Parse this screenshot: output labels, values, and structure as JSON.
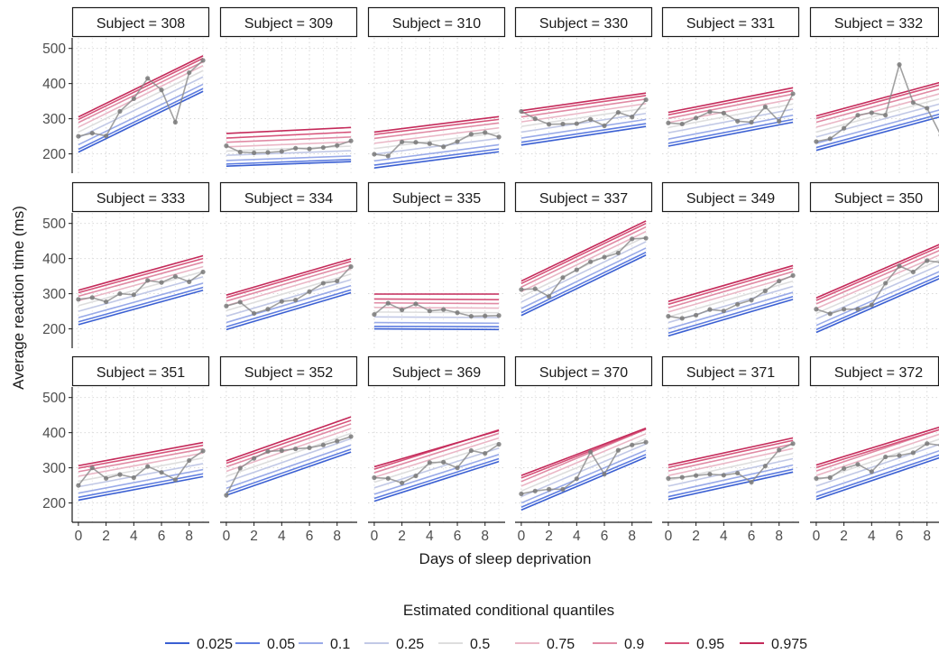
{
  "chart_data": {
    "type": "line",
    "xlabel": "Days of sleep deprivation",
    "ylabel": "Average reaction time (ms)",
    "facet_prefix": "Subject = ",
    "x_ticks": [
      0,
      2,
      4,
      6,
      8
    ],
    "y_ticks": [
      200,
      300,
      400,
      500
    ],
    "xlim": [
      -0.45,
      9.45
    ],
    "ylim": [
      145,
      530
    ],
    "grid": true,
    "legend_title": "Estimated conditional quantiles",
    "legend_position": "bottom",
    "quantiles": [
      {
        "q": "0.025",
        "color": "#3a5fd2"
      },
      {
        "q": "0.05",
        "color": "#5d7ce0"
      },
      {
        "q": "0.1",
        "color": "#99aae8"
      },
      {
        "q": "0.25",
        "color": "#c2c9e6"
      },
      {
        "q": "0.5",
        "color": "#dedede"
      },
      {
        "q": "0.75",
        "color": "#eab7c6"
      },
      {
        "q": "0.9",
        "color": "#e08aa4"
      },
      {
        "q": "0.95",
        "color": "#d6537a"
      },
      {
        "q": "0.975",
        "color": "#c42a5a"
      }
    ],
    "observed_color": "#8a8a8a",
    "subjects": [
      {
        "id": "308",
        "lines": [
          [
            205,
            378
          ],
          [
            213,
            386
          ],
          [
            226,
            398
          ],
          [
            246,
            419
          ],
          [
            262,
            437
          ],
          [
            276,
            451
          ],
          [
            289,
            462
          ],
          [
            298,
            472
          ],
          [
            305,
            479
          ]
        ],
        "observed": [
          250,
          259,
          251,
          321,
          357,
          415,
          382,
          290,
          431,
          466
        ]
      },
      {
        "id": "309",
        "lines": [
          [
            165,
            178
          ],
          [
            171,
            184
          ],
          [
            181,
            194
          ],
          [
            196,
            209
          ],
          [
            208,
            222
          ],
          [
            220,
            234
          ],
          [
            233,
            248
          ],
          [
            245,
            262
          ],
          [
            258,
            275
          ]
        ],
        "observed": [
          223,
          205,
          203,
          204,
          207,
          216,
          214,
          218,
          224,
          237
        ]
      },
      {
        "id": "310",
        "lines": [
          [
            160,
            206
          ],
          [
            168,
            214
          ],
          [
            180,
            226
          ],
          [
            199,
            244
          ],
          [
            215,
            260
          ],
          [
            230,
            274
          ],
          [
            244,
            288
          ],
          [
            255,
            298
          ],
          [
            262,
            306
          ]
        ],
        "observed": [
          199,
          194,
          234,
          233,
          229,
          220,
          235,
          256,
          261,
          248
        ]
      },
      {
        "id": "330",
        "lines": [
          [
            225,
            278
          ],
          [
            233,
            286
          ],
          [
            245,
            298
          ],
          [
            262,
            315
          ],
          [
            278,
            330
          ],
          [
            291,
            343
          ],
          [
            305,
            356
          ],
          [
            316,
            366
          ],
          [
            323,
            373
          ]
        ],
        "observed": [
          321,
          300,
          284,
          285,
          286,
          298,
          280,
          318,
          305,
          354
        ]
      },
      {
        "id": "331",
        "lines": [
          [
            222,
            290
          ],
          [
            230,
            298
          ],
          [
            242,
            310
          ],
          [
            260,
            327
          ],
          [
            275,
            342
          ],
          [
            289,
            356
          ],
          [
            301,
            370
          ],
          [
            311,
            380
          ],
          [
            318,
            388
          ]
        ],
        "observed": [
          288,
          285,
          302,
          320,
          316,
          293,
          290,
          334,
          293,
          371
        ]
      },
      {
        "id": "332",
        "lines": [
          [
            210,
            306
          ],
          [
            218,
            314
          ],
          [
            230,
            326
          ],
          [
            248,
            343
          ],
          [
            262,
            358
          ],
          [
            276,
            372
          ],
          [
            290,
            386
          ],
          [
            301,
            397
          ],
          [
            308,
            404
          ]
        ],
        "observed": [
          235,
          243,
          273,
          310,
          317,
          310,
          454,
          346,
          330,
          253
        ]
      },
      {
        "id": "333",
        "lines": [
          [
            212,
            310
          ],
          [
            220,
            318
          ],
          [
            232,
            330
          ],
          [
            250,
            348
          ],
          [
            266,
            363
          ],
          [
            280,
            377
          ],
          [
            293,
            390
          ],
          [
            303,
            400
          ],
          [
            310,
            408
          ]
        ],
        "observed": [
          284,
          289,
          277,
          300,
          297,
          338,
          332,
          349,
          334,
          362
        ]
      },
      {
        "id": "334",
        "lines": [
          [
            198,
            303
          ],
          [
            206,
            311
          ],
          [
            218,
            323
          ],
          [
            236,
            340
          ],
          [
            252,
            356
          ],
          [
            266,
            370
          ],
          [
            279,
            382
          ],
          [
            289,
            392
          ],
          [
            296,
            399
          ]
        ],
        "observed": [
          265,
          276,
          244,
          256,
          278,
          282,
          306,
          330,
          336,
          377
        ]
      },
      {
        "id": "335",
        "lines": [
          [
            200,
            198
          ],
          [
            207,
            206
          ],
          [
            218,
            216
          ],
          [
            234,
            232
          ],
          [
            248,
            246
          ],
          [
            261,
            259
          ],
          [
            274,
            272
          ],
          [
            285,
            283
          ],
          [
            299,
            299
          ]
        ],
        "observed": [
          241,
          273,
          254,
          271,
          251,
          255,
          246,
          236,
          237,
          238
        ]
      },
      {
        "id": "337",
        "lines": [
          [
            238,
            410
          ],
          [
            246,
            418
          ],
          [
            258,
            430
          ],
          [
            276,
            448
          ],
          [
            292,
            463
          ],
          [
            306,
            477
          ],
          [
            319,
            490
          ],
          [
            329,
            500
          ],
          [
            336,
            507
          ]
        ],
        "observed": [
          312,
          314,
          292,
          346,
          368,
          391,
          404,
          416,
          456,
          458
        ]
      },
      {
        "id": "349",
        "lines": [
          [
            180,
            284
          ],
          [
            188,
            292
          ],
          [
            200,
            304
          ],
          [
            218,
            321
          ],
          [
            234,
            336
          ],
          [
            248,
            350
          ],
          [
            260,
            363
          ],
          [
            270,
            373
          ],
          [
            278,
            380
          ]
        ],
        "observed": [
          236,
          230,
          239,
          255,
          251,
          270,
          282,
          308,
          336,
          352
        ]
      },
      {
        "id": "350",
        "lines": [
          [
            190,
            345
          ],
          [
            198,
            353
          ],
          [
            210,
            365
          ],
          [
            228,
            383
          ],
          [
            244,
            398
          ],
          [
            258,
            412
          ],
          [
            271,
            425
          ],
          [
            281,
            435
          ],
          [
            288,
            442
          ]
        ],
        "observed": [
          256,
          243,
          256,
          256,
          268,
          330,
          379,
          362,
          394,
          389
        ]
      },
      {
        "id": "351",
        "lines": [
          [
            208,
            275
          ],
          [
            216,
            283
          ],
          [
            228,
            295
          ],
          [
            246,
            312
          ],
          [
            262,
            328
          ],
          [
            276,
            342
          ],
          [
            289,
            354
          ],
          [
            299,
            364
          ],
          [
            306,
            372
          ]
        ],
        "observed": [
          250,
          300,
          270,
          281,
          272,
          304,
          287,
          266,
          321,
          348
        ]
      },
      {
        "id": "352",
        "lines": [
          [
            222,
            345
          ],
          [
            230,
            353
          ],
          [
            242,
            365
          ],
          [
            260,
            383
          ],
          [
            276,
            398
          ],
          [
            290,
            412
          ],
          [
            303,
            425
          ],
          [
            313,
            435
          ],
          [
            320,
            445
          ]
        ],
        "observed": [
          222,
          299,
          327,
          347,
          349,
          354,
          357,
          365,
          376,
          389
        ]
      },
      {
        "id": "369",
        "lines": [
          [
            205,
            318
          ],
          [
            213,
            326
          ],
          [
            225,
            338
          ],
          [
            243,
            356
          ],
          [
            259,
            371
          ],
          [
            273,
            385
          ],
          [
            286,
            398
          ],
          [
            296,
            408
          ],
          [
            303,
            406
          ]
        ],
        "observed": [
          272,
          270,
          257,
          277,
          315,
          316,
          300,
          349,
          341,
          367
        ]
      },
      {
        "id": "370",
        "lines": [
          [
            180,
            330
          ],
          [
            188,
            338
          ],
          [
            200,
            350
          ],
          [
            218,
            368
          ],
          [
            234,
            383
          ],
          [
            248,
            397
          ],
          [
            261,
            410
          ],
          [
            271,
            410
          ],
          [
            278,
            413
          ]
        ],
        "observed": [
          226,
          234,
          239,
          239,
          269,
          345,
          282,
          350,
          365,
          373
        ]
      },
      {
        "id": "371",
        "lines": [
          [
            210,
            288
          ],
          [
            218,
            296
          ],
          [
            230,
            308
          ],
          [
            248,
            326
          ],
          [
            264,
            341
          ],
          [
            278,
            355
          ],
          [
            291,
            368
          ],
          [
            301,
            378
          ],
          [
            308,
            385
          ]
        ],
        "observed": [
          270,
          273,
          278,
          282,
          279,
          285,
          259,
          305,
          351,
          369
        ]
      },
      {
        "id": "372",
        "lines": [
          [
            210,
            330
          ],
          [
            218,
            338
          ],
          [
            230,
            350
          ],
          [
            248,
            368
          ],
          [
            264,
            383
          ],
          [
            278,
            397
          ],
          [
            291,
            410
          ],
          [
            301,
            410
          ],
          [
            308,
            417
          ]
        ],
        "observed": [
          270,
          272,
          298,
          310,
          289,
          331,
          335,
          343,
          369,
          364
        ]
      }
    ]
  }
}
